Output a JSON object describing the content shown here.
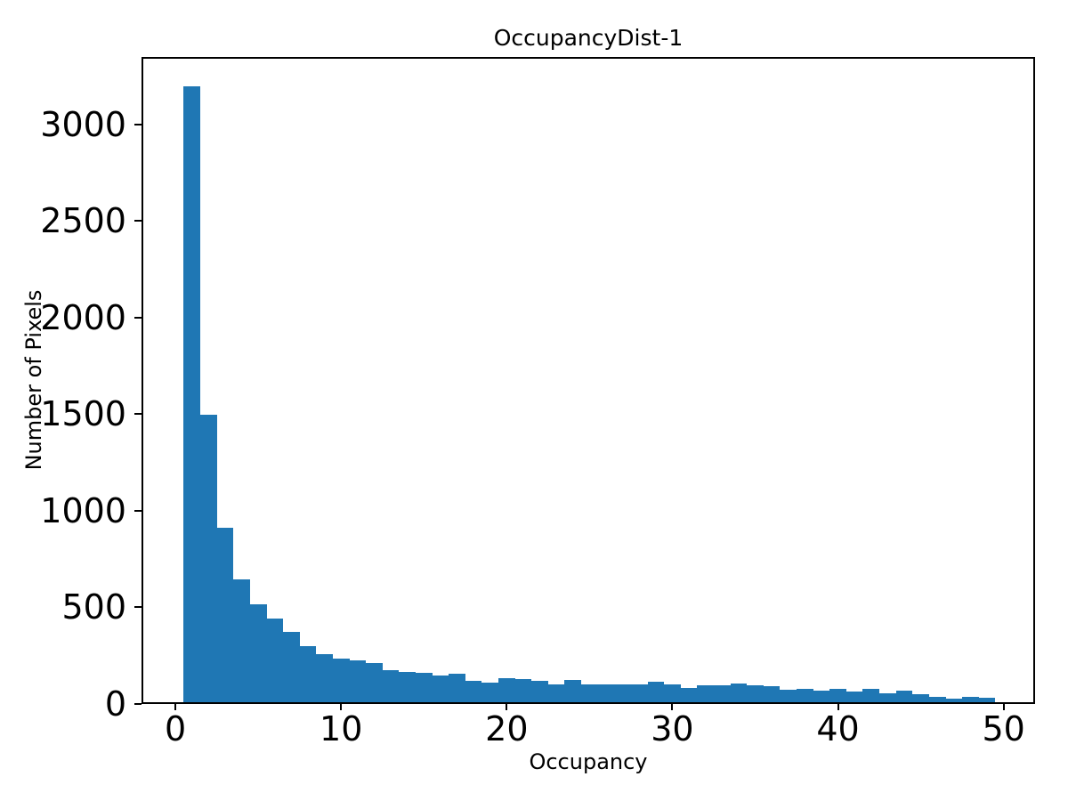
{
  "chart_data": {
    "type": "bar",
    "subtype": "histogram",
    "title": "OccupancyDist-1",
    "xlabel": "Occupancy",
    "ylabel": "Number of Pixels",
    "bar_color": "#1f77b4",
    "background_color": "#ffffff",
    "spine_color": "#000000",
    "grid": false,
    "legend": false,
    "bin_start": 0.5,
    "bin_width": 1,
    "bin_centers": [
      1,
      2,
      3,
      4,
      5,
      6,
      7,
      8,
      9,
      10,
      11,
      12,
      13,
      14,
      15,
      16,
      17,
      18,
      19,
      20,
      21,
      22,
      23,
      24,
      25,
      26,
      27,
      28,
      29,
      30,
      31,
      32,
      33,
      34,
      35,
      36,
      37,
      38,
      39,
      40,
      41,
      42,
      43,
      44,
      45,
      46,
      47,
      48,
      49
    ],
    "values": [
      3190,
      1490,
      905,
      635,
      505,
      435,
      365,
      290,
      250,
      225,
      215,
      205,
      167,
      157,
      152,
      140,
      148,
      110,
      102,
      125,
      122,
      111,
      93,
      116,
      90,
      94,
      94,
      90,
      105,
      90,
      76,
      86,
      86,
      96,
      88,
      83,
      66,
      69,
      60,
      69,
      54,
      69,
      46,
      59,
      43,
      29,
      20,
      28,
      23
    ],
    "x_ticks": [
      0,
      10,
      20,
      30,
      40,
      50
    ],
    "y_ticks": [
      0,
      500,
      1000,
      1500,
      2000,
      2500,
      3000
    ],
    "xlim": [
      -2.05,
      51.9
    ],
    "ylim": [
      0,
      3350
    ]
  }
}
